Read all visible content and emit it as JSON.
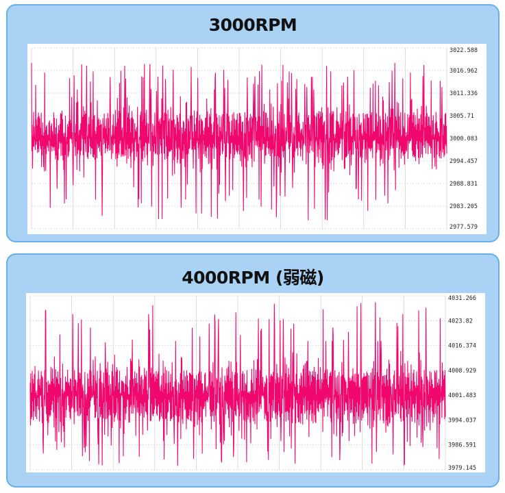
{
  "chart_data": [
    {
      "type": "line",
      "title": "3000RPM",
      "xlabel": "",
      "ylabel": "",
      "y_ticks": [
        "3022.588",
        "3016.962",
        "3011.336",
        "3005.71",
        "3000.083",
        "2994.457",
        "2988.831",
        "2983.205",
        "2977.579"
      ],
      "ylim": [
        2977.579,
        3022.588
      ],
      "axis_side": "right",
      "grid": true,
      "series": [
        {
          "color": "#f0086e",
          "mean": 3000.1,
          "band_low": 2995.0,
          "band_high": 3007.0,
          "spike_max": 3019.0,
          "spike_min": 2979.5,
          "samples": 1200
        }
      ]
    },
    {
      "type": "line",
      "title": "4000RPM (弱磁)",
      "xlabel": "",
      "ylabel": "",
      "y_ticks": [
        "4031.266",
        "4023.82",
        "4016.374",
        "4008.929",
        "4001.483",
        "3994.037",
        "3986.591",
        "3979.145"
      ],
      "ylim": [
        3979.145,
        4031.266
      ],
      "axis_side": "right",
      "grid": true,
      "series": [
        {
          "color": "#f0086e",
          "mean": 4001.5,
          "band_low": 3993.0,
          "band_high": 4009.0,
          "spike_max": 4029.5,
          "spike_min": 3980.0,
          "samples": 1200
        }
      ]
    }
  ]
}
